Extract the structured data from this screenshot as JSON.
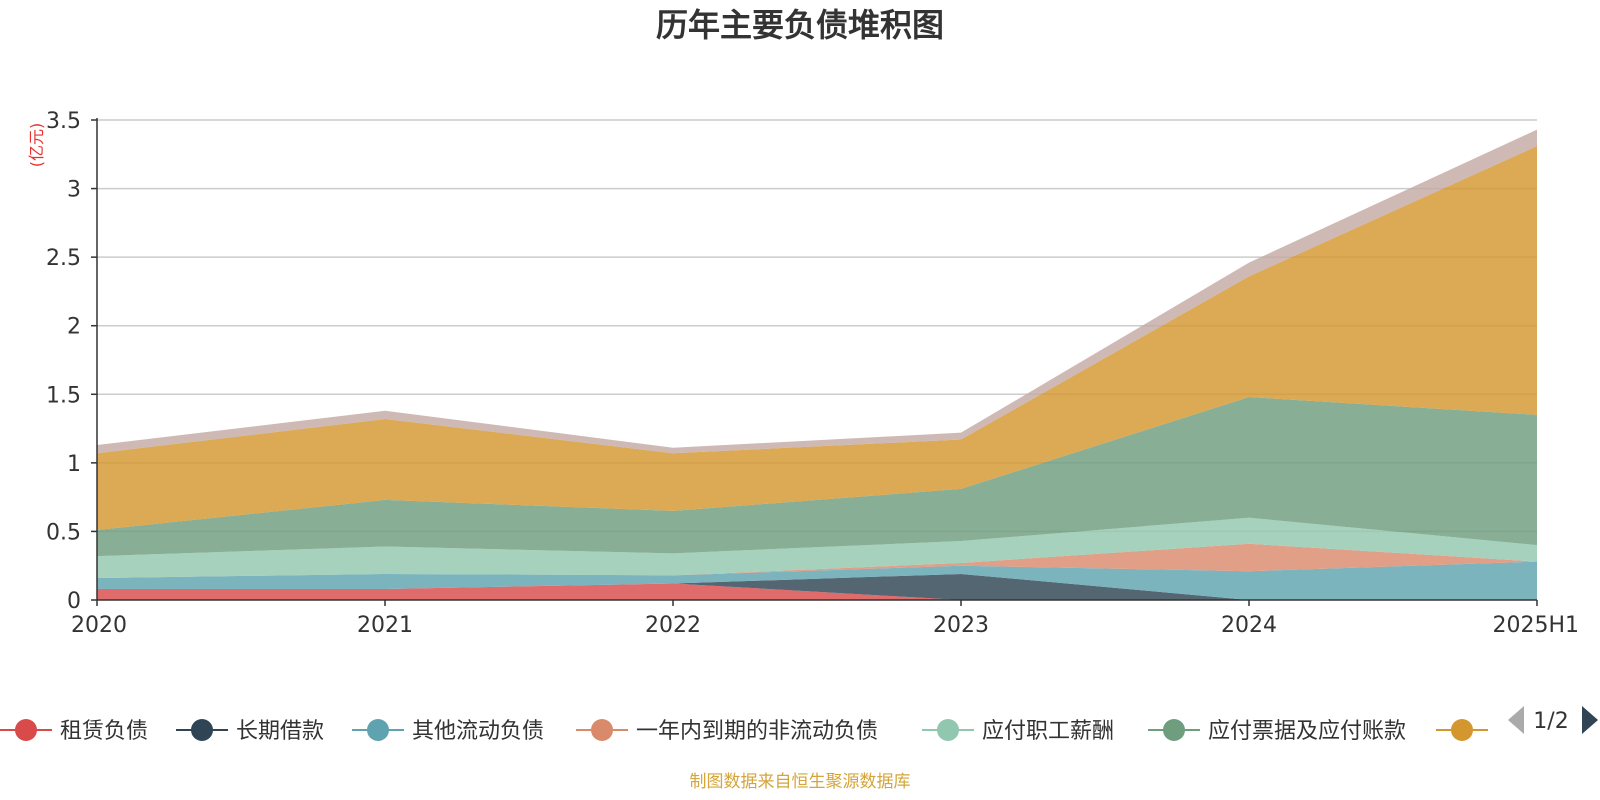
{
  "chart_data": {
    "type": "area",
    "stacked": true,
    "title": "历年主要负债堆积图",
    "unit_label": "(亿元)",
    "x": [
      "2020",
      "2021",
      "2022",
      "2023",
      "2024",
      "2025H1"
    ],
    "yticks": [
      "0",
      "0.5",
      "1",
      "1.5",
      "2",
      "2.5",
      "3",
      "3.5"
    ],
    "ylim": [
      0,
      3.5
    ],
    "grid": true,
    "legend_position": "bottom",
    "series": [
      {
        "name": "租赁负债",
        "color": "#d94a4a",
        "values": [
          0.08,
          0.08,
          0.12,
          0.0,
          0.0,
          0.0
        ]
      },
      {
        "name": "长期借款",
        "color": "#2f4454",
        "values": [
          0.0,
          0.0,
          0.0,
          0.19,
          0.0,
          0.0
        ]
      },
      {
        "name": "其他流动负债",
        "color": "#5fa3b0",
        "values": [
          0.08,
          0.11,
          0.06,
          0.06,
          0.21,
          0.28
        ]
      },
      {
        "name": "一年内到期的非流动负债",
        "color": "#d98a6b",
        "values": [
          0.0,
          0.0,
          0.0,
          0.02,
          0.2,
          0.0
        ]
      },
      {
        "name": "应付职工薪酬",
        "color": "#91c7ae",
        "values": [
          0.16,
          0.2,
          0.16,
          0.16,
          0.19,
          0.12
        ]
      },
      {
        "name": "应付票据及应付账款",
        "color": "#6e9e7e",
        "values": [
          0.19,
          0.34,
          0.31,
          0.38,
          0.88,
          0.95
        ]
      },
      {
        "name": "",
        "color": "#d4962e",
        "values": [
          0.56,
          0.59,
          0.42,
          0.36,
          0.88,
          1.96
        ]
      },
      {
        "name": "",
        "color": "#c4a9a3",
        "values": [
          0.06,
          0.06,
          0.04,
          0.05,
          0.1,
          0.12
        ]
      }
    ],
    "legend": {
      "items": [
        {
          "label": "租赁负债",
          "color": "#d94a4a"
        },
        {
          "label": "长期借款",
          "color": "#2f4454"
        },
        {
          "label": "其他流动负债",
          "color": "#5fa3b0"
        },
        {
          "label": "一年内到期的非流动负债",
          "color": "#d98a6b"
        },
        {
          "label": "应付职工薪酬",
          "color": "#91c7ae"
        },
        {
          "label": "应付票据及应付账款",
          "color": "#6e9e7e"
        },
        {
          "label": "",
          "color": "#d4962e"
        }
      ],
      "page_indicator": "1/2"
    },
    "source_note": "制图数据来自恒生聚源数据库"
  }
}
